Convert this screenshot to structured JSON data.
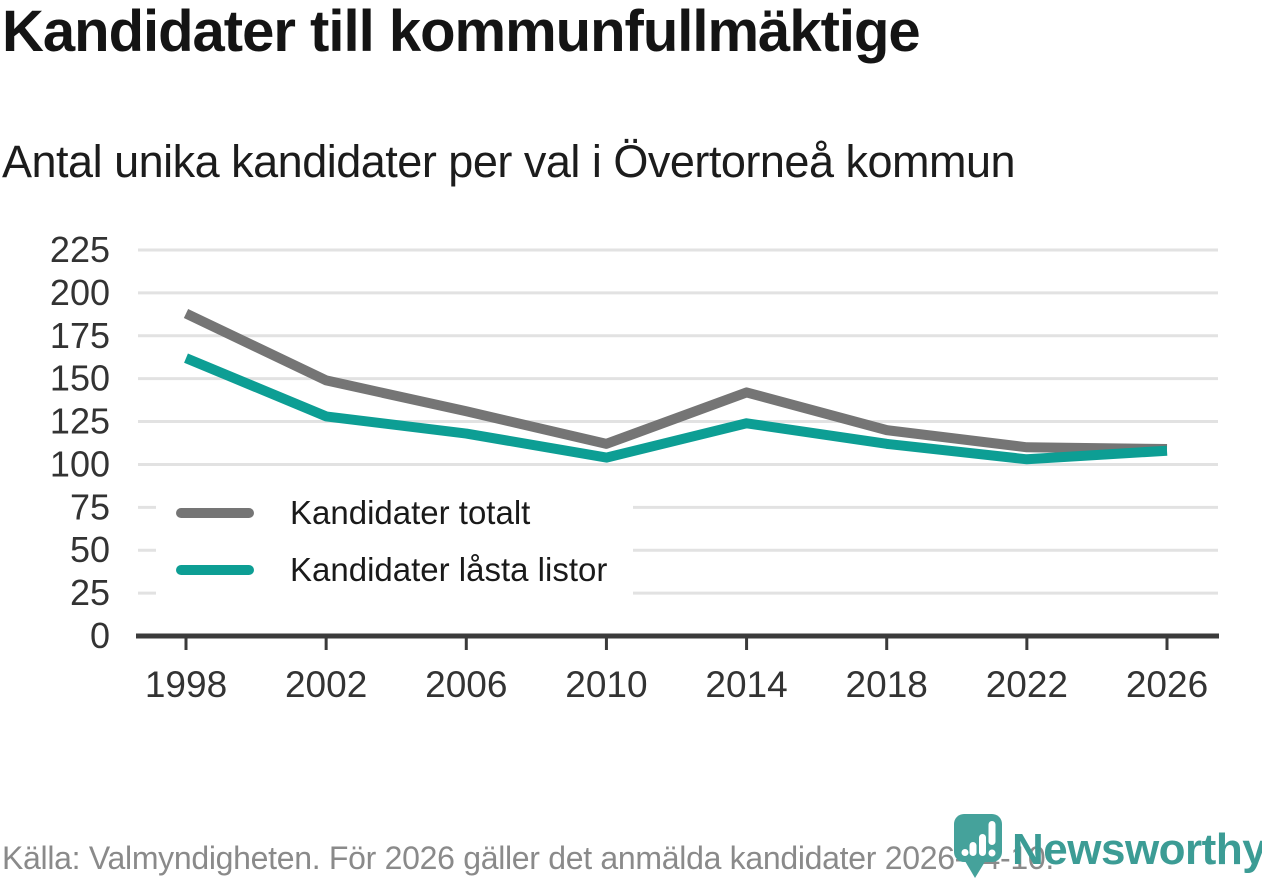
{
  "header": {
    "title": "Kandidater till kommunfullmäktige",
    "subtitle": "Antal unika kandidater per val i Övertorneå kommun"
  },
  "chart_data": {
    "type": "line",
    "x": [
      1998,
      2002,
      2006,
      2010,
      2014,
      2018,
      2022,
      2026
    ],
    "series": [
      {
        "name": "Kandidater totalt",
        "color": "#757575",
        "values": [
          188,
          149,
          131,
          112,
          142,
          120,
          110,
          109
        ]
      },
      {
        "name": "Kandidater låsta listor",
        "color": "#0d9e94",
        "values": [
          162,
          128,
          118,
          104,
          124,
          112,
          103,
          108
        ]
      }
    ],
    "ylim": [
      0,
      225
    ],
    "ytick_step": 25,
    "yticks": [
      0,
      25,
      50,
      75,
      100,
      125,
      150,
      175,
      200,
      225
    ],
    "grid": true,
    "legend_position": "inside-bottom-left"
  },
  "footer": {
    "source": "Källa: Valmyndigheten. För 2026 gäller det anmälda kandidater 2026-04-10.",
    "brand": "Newsworthy"
  },
  "colors": {
    "series_gray": "#757575",
    "accent_teal": "#0d9e94",
    "logo_teal": "#45a29b",
    "logo_text_teal": "#3c9c95",
    "grid": "#e2e2e2",
    "axis": "#3b3b3b",
    "tick_label": "#333333",
    "title_text": "#141414",
    "muted_text": "#8a8a8a"
  }
}
